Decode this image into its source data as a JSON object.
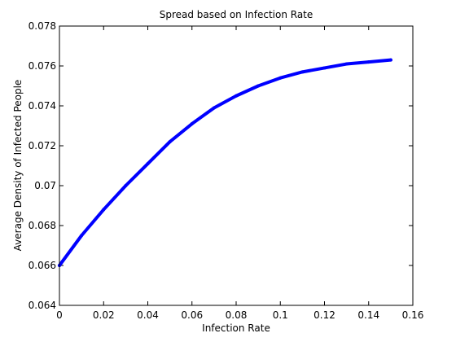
{
  "chart_data": {
    "type": "line",
    "title": "Spread based on Infection Rate",
    "xlabel": "Infection Rate",
    "ylabel": "Average Density of Infected People",
    "xlim": [
      0,
      0.16
    ],
    "ylim": [
      0.064,
      0.078
    ],
    "xticks": [
      "0",
      "0.02",
      "0.04",
      "0.06",
      "0.08",
      "0.1",
      "0.12",
      "0.14",
      "0.16"
    ],
    "yticks": [
      "0.064",
      "0.066",
      "0.068",
      "0.07",
      "0.072",
      "0.074",
      "0.076",
      "0.078"
    ],
    "grid": false,
    "series_color": "#0000ff",
    "series": [
      {
        "x": [
          0,
          0.01,
          0.02,
          0.03,
          0.04,
          0.05,
          0.06,
          0.07,
          0.08,
          0.09,
          0.1,
          0.11,
          0.12,
          0.13,
          0.14,
          0.15
        ],
        "y": [
          0.066,
          0.0675,
          0.0688,
          0.07,
          0.0711,
          0.0722,
          0.0731,
          0.0739,
          0.0745,
          0.075,
          0.0754,
          0.0757,
          0.0759,
          0.0761,
          0.0762,
          0.0763
        ]
      }
    ]
  }
}
